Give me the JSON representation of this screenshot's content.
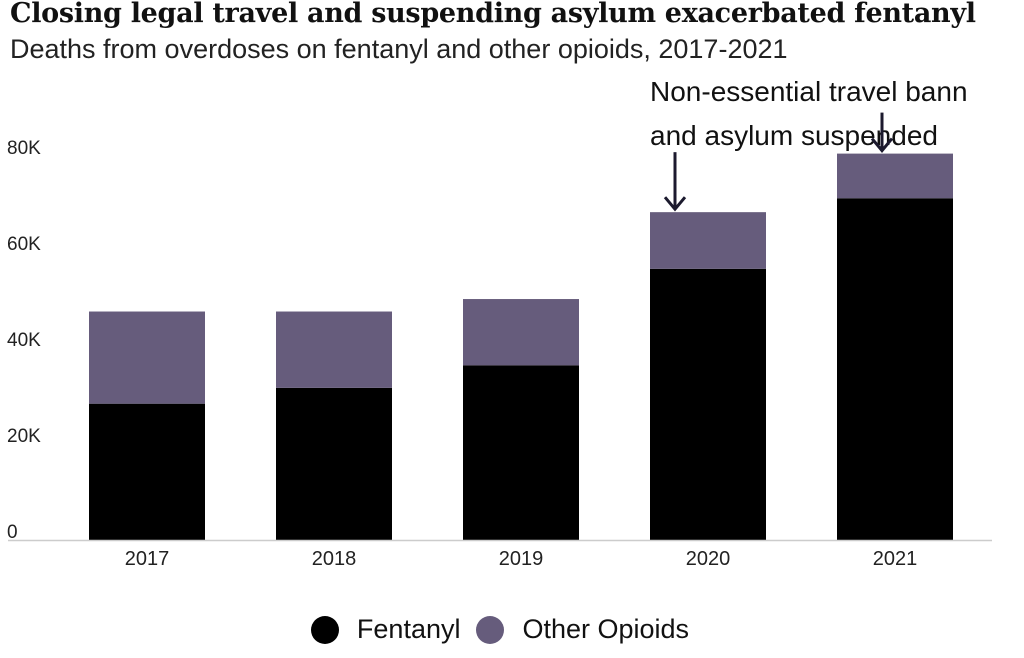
{
  "title": "Closing legal travel and suspending asylum exacerbated fentanyl",
  "subtitle": "Deaths from overdoses on fentanyl and other opioids, 2017-2021",
  "annotation": {
    "line1": "Non-essential travel bann",
    "line2": "and asylum suspended"
  },
  "colors": {
    "fentanyl": "#000000",
    "other_opioids": "#665c7c",
    "arrow": "#1c1a2e",
    "axis": "#cccccc"
  },
  "chart_data": {
    "type": "bar",
    "stacked": true,
    "categories": [
      "2017",
      "2018",
      "2019",
      "2020",
      "2021"
    ],
    "series": [
      {
        "name": "Fentanyl",
        "values": [
          28400,
          31700,
          36400,
          56500,
          71200
        ]
      },
      {
        "name": "Other Opioids",
        "values": [
          19200,
          15900,
          13800,
          11800,
          9300
        ]
      }
    ],
    "yticks": [
      0,
      20000,
      40000,
      60000,
      80000
    ],
    "ytick_labels": [
      "0",
      "20K",
      "40K",
      "60K",
      "80K"
    ],
    "ylim": [
      0,
      86000
    ],
    "grid": false,
    "legend_position": "bottom",
    "xlabel": "",
    "ylabel": ""
  }
}
